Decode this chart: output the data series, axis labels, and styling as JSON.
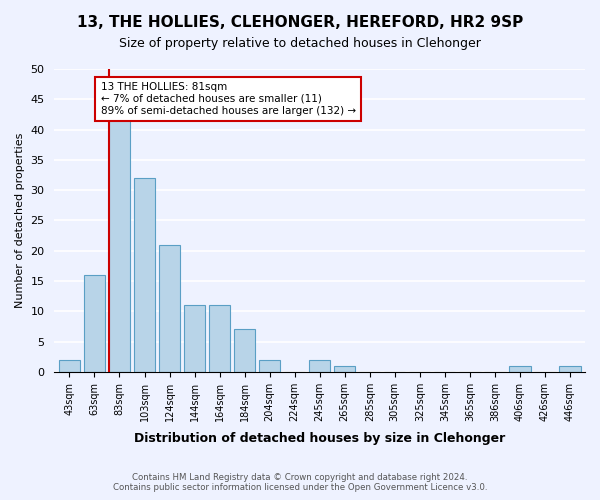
{
  "title": "13, THE HOLLIES, CLEHONGER, HEREFORD, HR2 9SP",
  "subtitle": "Size of property relative to detached houses in Clehonger",
  "xlabel": "Distribution of detached houses by size in Clehonger",
  "ylabel": "Number of detached properties",
  "bar_labels": [
    "43sqm",
    "63sqm",
    "83sqm",
    "103sqm",
    "124sqm",
    "144sqm",
    "164sqm",
    "184sqm",
    "204sqm",
    "224sqm",
    "245sqm",
    "265sqm",
    "285sqm",
    "305sqm",
    "325sqm",
    "345sqm",
    "365sqm",
    "386sqm",
    "406sqm",
    "426sqm",
    "446sqm"
  ],
  "bar_values": [
    2,
    16,
    42,
    32,
    21,
    11,
    11,
    7,
    2,
    0,
    2,
    1,
    0,
    0,
    0,
    0,
    0,
    0,
    1,
    0,
    1
  ],
  "bar_color": "#b8d4e8",
  "bar_edge_color": "#5a9fc5",
  "property_line_xindex": 2,
  "property_line_color": "#cc0000",
  "ylim": [
    0,
    50
  ],
  "yticks": [
    0,
    5,
    10,
    15,
    20,
    25,
    30,
    35,
    40,
    45,
    50
  ],
  "annotation_line1": "13 THE HOLLIES: 81sqm",
  "annotation_line2": "← 7% of detached houses are smaller (11)",
  "annotation_line3": "89% of semi-detached houses are larger (132) →",
  "annotation_box_color": "#ffffff",
  "annotation_box_edge_color": "#cc0000",
  "footer_line1": "Contains HM Land Registry data © Crown copyright and database right 2024.",
  "footer_line2": "Contains public sector information licensed under the Open Government Licence v3.0.",
  "bg_color": "#eef2ff"
}
